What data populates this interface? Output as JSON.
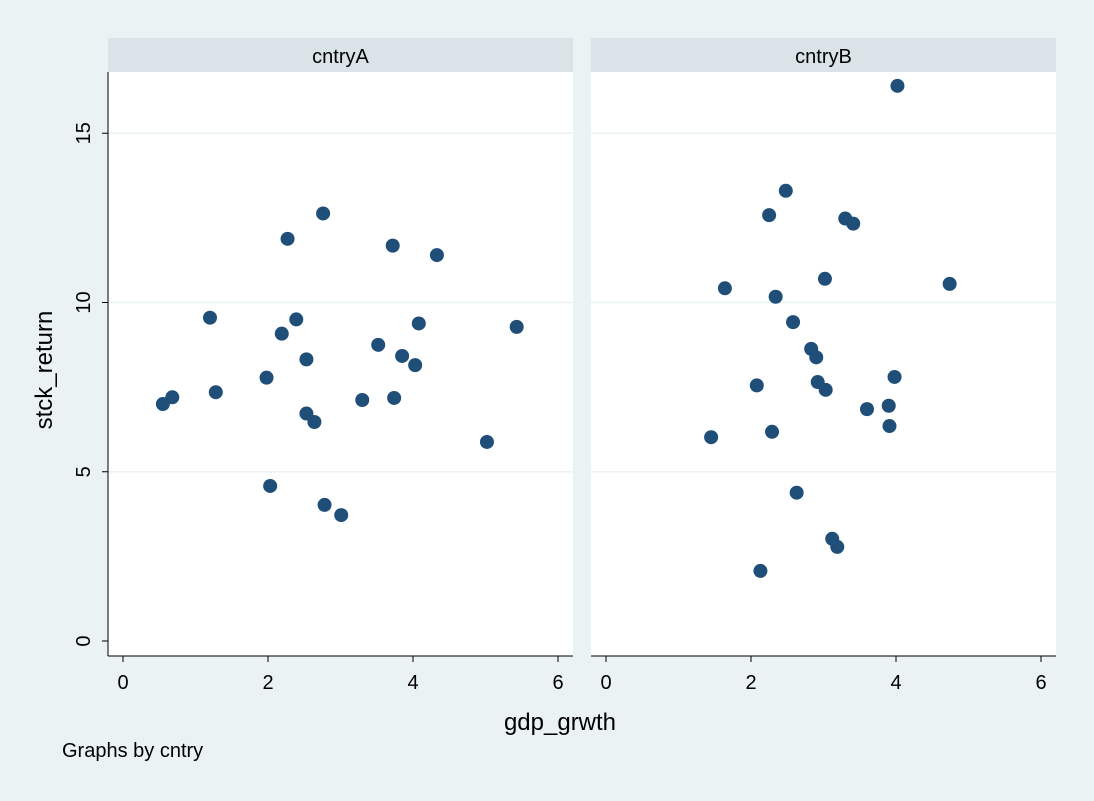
{
  "chart_data": {
    "type": "scatter",
    "xlabel": "gdp_grwth",
    "ylabel": "stck_return",
    "note": "Graphs by cntry",
    "xlim": [
      0,
      6
    ],
    "ylim": [
      0,
      17
    ],
    "xticks": [
      0,
      2,
      4,
      6
    ],
    "yticks": [
      0,
      5,
      10,
      15
    ],
    "grid": true,
    "colors": {
      "background": "#eaf2f3",
      "plot_background": "#ffffff",
      "panel_header": "#d9e3e8",
      "marker": "#1f4e79",
      "axis": "#000000",
      "grid": "#eaf2f3"
    },
    "panels": [
      {
        "name": "cntryA",
        "points": [
          [
            0.55,
            7.0
          ],
          [
            0.68,
            7.2
          ],
          [
            1.2,
            9.55
          ],
          [
            1.28,
            7.35
          ],
          [
            1.98,
            7.78
          ],
          [
            2.03,
            4.58
          ],
          [
            2.19,
            9.08
          ],
          [
            2.27,
            11.88
          ],
          [
            2.39,
            9.5
          ],
          [
            2.53,
            8.32
          ],
          [
            2.53,
            6.72
          ],
          [
            2.64,
            6.47
          ],
          [
            2.76,
            12.63
          ],
          [
            2.78,
            4.02
          ],
          [
            3.01,
            3.72
          ],
          [
            3.3,
            7.12
          ],
          [
            3.52,
            8.75
          ],
          [
            3.72,
            11.68
          ],
          [
            3.74,
            7.18
          ],
          [
            3.85,
            8.42
          ],
          [
            4.03,
            8.15
          ],
          [
            4.08,
            9.38
          ],
          [
            4.33,
            11.4
          ],
          [
            5.02,
            5.88
          ],
          [
            5.43,
            9.28
          ]
        ]
      },
      {
        "name": "cntryB",
        "points": [
          [
            1.45,
            6.02
          ],
          [
            1.64,
            10.42
          ],
          [
            2.08,
            7.55
          ],
          [
            2.13,
            2.07
          ],
          [
            2.25,
            12.58
          ],
          [
            2.29,
            6.18
          ],
          [
            2.34,
            10.17
          ],
          [
            2.48,
            13.3
          ],
          [
            2.58,
            9.42
          ],
          [
            2.63,
            4.38
          ],
          [
            2.83,
            8.63
          ],
          [
            2.9,
            8.38
          ],
          [
            2.92,
            7.65
          ],
          [
            3.02,
            10.7
          ],
          [
            3.03,
            7.42
          ],
          [
            3.12,
            3.02
          ],
          [
            3.19,
            2.78
          ],
          [
            3.3,
            12.48
          ],
          [
            3.41,
            12.33
          ],
          [
            3.6,
            6.85
          ],
          [
            3.9,
            6.95
          ],
          [
            3.91,
            6.35
          ],
          [
            3.98,
            7.8
          ],
          [
            4.02,
            16.4
          ],
          [
            4.74,
            10.55
          ]
        ]
      }
    ]
  }
}
